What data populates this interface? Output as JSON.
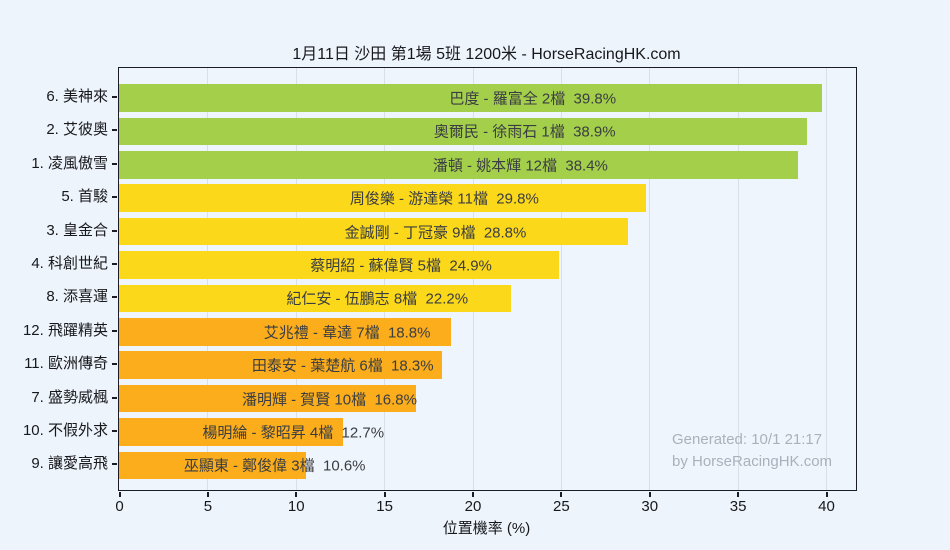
{
  "watermark": {
    "line1": "Generated: 10/1 21:17",
    "line2": "by HorseRacingHK.com"
  },
  "chart_data": {
    "type": "bar",
    "orientation": "horizontal",
    "title": "1月11日  沙田  第1場  5班  1200米 - HorseRacingHK.com",
    "xlabel": "位置機率 (%)",
    "ylabel": "",
    "xlim": [
      0,
      41.7
    ],
    "xticks": [
      0,
      5,
      10,
      15,
      20,
      25,
      30,
      35,
      40
    ],
    "grid": true,
    "legend": false,
    "categories": [
      "6. 美神來",
      "2. 艾彼奧",
      "1. 凌風傲雪",
      "5. 首駿",
      "3. 皇金合",
      "4. 科創世紀",
      "8. 添喜運",
      "12. 飛躍精英",
      "11. 歐洲傳奇",
      "7. 盛勢威楓",
      "10. 不假外求",
      "9. 讓愛高飛"
    ],
    "values": [
      39.8,
      38.9,
      38.4,
      29.8,
      28.8,
      24.9,
      22.2,
      18.8,
      18.3,
      16.8,
      12.7,
      10.6
    ],
    "bars": [
      {
        "category": "6. 美神來",
        "label": "巴度 - 羅富全 2檔",
        "value": 39.8,
        "pct": "39.8%",
        "color": "#a4cf4b"
      },
      {
        "category": "2. 艾彼奧",
        "label": "奧爾民 - 徐雨石 1檔",
        "value": 38.9,
        "pct": "38.9%",
        "color": "#a4cf4b"
      },
      {
        "category": "1. 凌風傲雪",
        "label": "潘頓 - 姚本輝 12檔",
        "value": 38.4,
        "pct": "38.4%",
        "color": "#a4cf4b"
      },
      {
        "category": "5. 首駿",
        "label": "周俊樂 - 游達榮 11檔",
        "value": 29.8,
        "pct": "29.8%",
        "color": "#fbd81a"
      },
      {
        "category": "3. 皇金合",
        "label": "金誠剛 - 丁冠豪 9檔",
        "value": 28.8,
        "pct": "28.8%",
        "color": "#fbd81a"
      },
      {
        "category": "4. 科創世紀",
        "label": "蔡明紹 - 蘇偉賢 5檔",
        "value": 24.9,
        "pct": "24.9%",
        "color": "#fbd81a"
      },
      {
        "category": "8. 添喜運",
        "label": "紀仁安 - 伍鵬志 8檔",
        "value": 22.2,
        "pct": "22.2%",
        "color": "#fbd81a"
      },
      {
        "category": "12. 飛躍精英",
        "label": "艾兆禮 - 韋達 7檔",
        "value": 18.8,
        "pct": "18.8%",
        "color": "#fbad1b"
      },
      {
        "category": "11. 歐洲傳奇",
        "label": "田泰安 - 葉楚航 6檔",
        "value": 18.3,
        "pct": "18.3%",
        "color": "#fbad1b"
      },
      {
        "category": "7. 盛勢威楓",
        "label": "潘明輝 - 賀賢 10檔",
        "value": 16.8,
        "pct": "16.8%",
        "color": "#fbad1b"
      },
      {
        "category": "10. 不假外求",
        "label": "楊明綸 - 黎昭昇 4檔",
        "value": 12.7,
        "pct": "12.7%",
        "color": "#fbad1b"
      },
      {
        "category": "9. 讓愛高飛",
        "label": "巫顯東 - 鄭俊偉 3檔",
        "value": 10.6,
        "pct": "10.6%",
        "color": "#fbad1b"
      }
    ],
    "colors": {
      "high": "#a4cf4b",
      "mid": "#fbd81a",
      "low": "#fbad1b",
      "background": "#edf4fb",
      "gridline": "#d9dfe6",
      "spine": "#1c1c26",
      "watermark": "#a9b1bb"
    }
  }
}
